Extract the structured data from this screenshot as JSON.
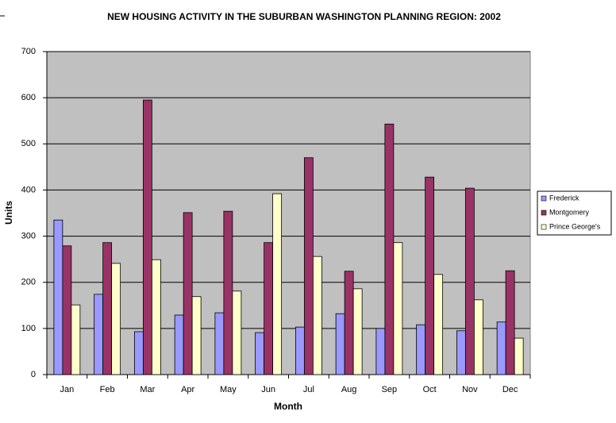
{
  "chart_data": {
    "type": "bar",
    "title": "NEW HOUSING ACTIVITY IN THE SUBURBAN WASHINGTON PLANNING REGION:  2002",
    "x_label": "Month",
    "y_label": "Units",
    "categories": [
      "Jan",
      "Feb",
      "Mar",
      "Apr",
      "May",
      "Jun",
      "Jul",
      "Aug",
      "Sep",
      "Oct",
      "Nov",
      "Dec"
    ],
    "series": [
      {
        "name": "Frederick",
        "color": "#9999ff",
        "values": [
          335,
          174,
          93,
          129,
          134,
          91,
          103,
          132,
          100,
          108,
          95,
          114
        ]
      },
      {
        "name": "Montgomery",
        "color": "#993366",
        "values": [
          279,
          286,
          595,
          351,
          354,
          286,
          470,
          224,
          543,
          428,
          404,
          225
        ]
      },
      {
        "name": "Prince George's",
        "color": "#ffffcc",
        "values": [
          151,
          241,
          249,
          169,
          181,
          392,
          256,
          186,
          286,
          217,
          162,
          79
        ]
      }
    ],
    "ylim": [
      0,
      700
    ],
    "yticks": [
      0,
      100,
      200,
      300,
      400,
      500,
      600,
      700
    ],
    "grid": true,
    "legend": "right",
    "plot_background": "#c0c0c0"
  }
}
